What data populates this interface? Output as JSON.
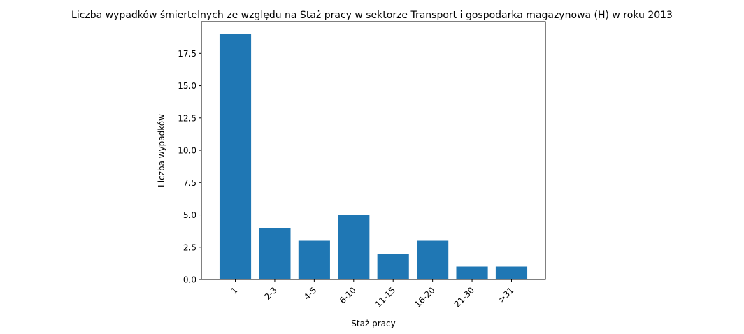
{
  "chart_data": {
    "type": "bar",
    "title": "Liczba wypadków śmiertelnych ze względu na Staż pracy w sektorze Transport i gospodarka magazynowa  (H)   w roku 2013",
    "xlabel": "Staż pracy",
    "ylabel": "Liczba wypadków",
    "categories": [
      "1",
      "2-3",
      "4-5",
      "6-10",
      "11-15",
      "16-20",
      "21-30",
      ">31"
    ],
    "values": [
      19,
      4,
      3,
      5,
      2,
      3,
      1,
      1
    ],
    "ylim": [
      0,
      19.95
    ],
    "yticks": [
      0.0,
      2.5,
      5.0,
      7.5,
      10.0,
      12.5,
      15.0,
      17.5
    ],
    "ytick_labels": [
      "0.0",
      "2.5",
      "5.0",
      "7.5",
      "10.0",
      "12.5",
      "15.0",
      "17.5"
    ],
    "xtick_rotation": "45deg",
    "bar_color": "#1f77b4",
    "grid": false,
    "legend": "none"
  }
}
